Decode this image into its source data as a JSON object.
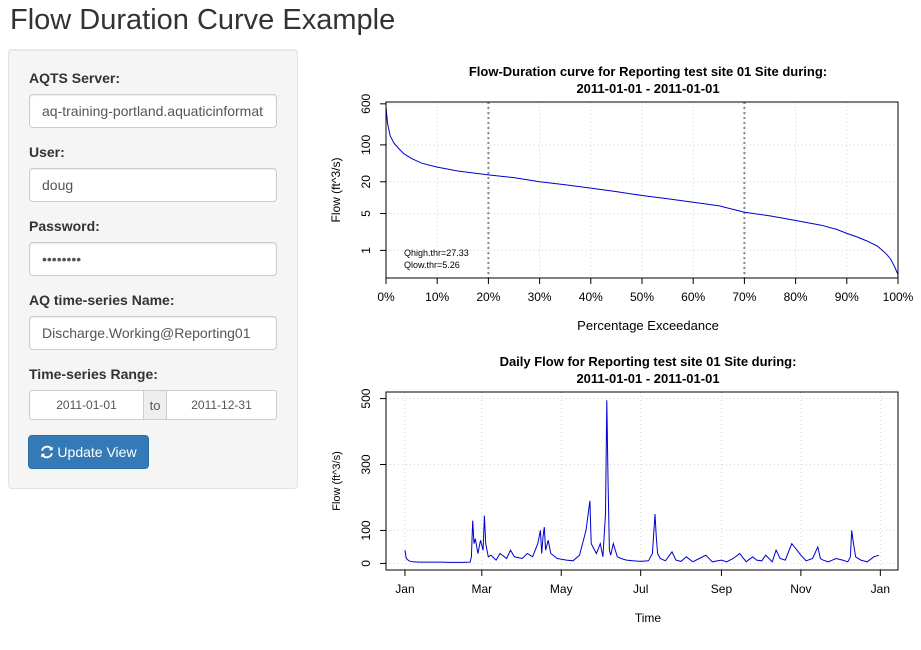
{
  "page": {
    "title": "Flow Duration Curve Example"
  },
  "form": {
    "server_label": "AQTS Server:",
    "server_value": "aq-training-portland.aquaticinformatics.net",
    "user_label": "User:",
    "user_value": "doug",
    "password_label": "Password:",
    "password_value": "doug1234",
    "series_label": "AQ time-series Name:",
    "series_value": "Discharge.Working@Reporting01",
    "range_label": "Time-series Range:",
    "range_start": "2011-01-01",
    "range_sep": "to",
    "range_end": "2011-12-31",
    "update_label": "Update View",
    "update_icon": "refresh-icon",
    "accent_color": "#337ab7"
  },
  "chart_data": [
    {
      "type": "line",
      "title": "Flow-Duration curve for Reporting test site 01 Site during:",
      "subtitle": "2011-01-01 - 2011-01-01",
      "xlabel": "Percentage Exceedance",
      "ylabel": "Flow (ft^3/s)",
      "xlim": [
        0,
        100
      ],
      "ylim": [
        0.3,
        650
      ],
      "y_scale": "log",
      "x_ticks": [
        0,
        10,
        20,
        30,
        40,
        50,
        60,
        70,
        80,
        90,
        100
      ],
      "x_tick_labels": [
        "0%",
        "10%",
        "20%",
        "30%",
        "40%",
        "50%",
        "60%",
        "70%",
        "80%",
        "90%",
        "100%"
      ],
      "y_ticks": [
        1,
        5,
        20,
        100,
        600
      ],
      "y_tick_labels": [
        "1",
        "5",
        "20",
        "100",
        "600"
      ],
      "grid": true,
      "threshold_lines_x": [
        20,
        70
      ],
      "annotations": [
        "Qhigh.thr=27.33",
        "Qlow.thr=5.26"
      ],
      "series": [
        {
          "color": "#0000cc",
          "x": [
            0,
            0.3,
            0.8,
            1.5,
            2.5,
            3.5,
            5,
            7,
            10,
            14,
            20,
            25,
            30,
            35,
            40,
            45,
            50,
            55,
            60,
            65,
            70,
            75,
            78,
            82,
            85,
            88,
            90,
            92,
            94,
            96,
            97.5,
            98.5,
            99.3,
            100
          ],
          "y": [
            520,
            260,
            150,
            110,
            85,
            68,
            55,
            45,
            38,
            32,
            27,
            24,
            20,
            17.5,
            15.2,
            13,
            11,
            9.5,
            8.2,
            7,
            5.3,
            4.5,
            4,
            3.4,
            3,
            2.5,
            2.1,
            1.8,
            1.5,
            1.2,
            0.9,
            0.7,
            0.5,
            0.35
          ]
        }
      ]
    },
    {
      "type": "line",
      "title": "Daily Flow for Reporting test site 01 Site during:",
      "subtitle": "2011-01-01 - 2011-01-01",
      "xlabel": "Time",
      "ylabel": "Flow (ft^3/s)",
      "xlim": [
        "2011-01-01",
        "2011-12-31"
      ],
      "ylim": [
        -20,
        520
      ],
      "y_ticks": [
        0,
        100,
        300,
        500
      ],
      "y_tick_labels": [
        "0",
        "100",
        "300",
        "500"
      ],
      "x_ticks": [
        "2011-01-01",
        "2011-03-01",
        "2011-05-01",
        "2011-07-01",
        "2011-09-01",
        "2011-11-01",
        "2012-01-01"
      ],
      "x_tick_labels": [
        "Jan",
        "Mar",
        "May",
        "Jul",
        "Sep",
        "Nov",
        "Jan"
      ],
      "grid": true,
      "series": [
        {
          "color": "#0000cc",
          "x": [
            "2011-01-01",
            "2011-01-02",
            "2011-01-04",
            "2011-01-07",
            "2011-01-12",
            "2011-01-20",
            "2011-01-28",
            "2011-02-05",
            "2011-02-13",
            "2011-02-20",
            "2011-02-21",
            "2011-02-22",
            "2011-02-23",
            "2011-02-24",
            "2011-02-26",
            "2011-02-28",
            "2011-03-02",
            "2011-03-03",
            "2011-03-04",
            "2011-03-06",
            "2011-03-08",
            "2011-03-12",
            "2011-03-15",
            "2011-03-20",
            "2011-03-23",
            "2011-03-26",
            "2011-04-01",
            "2011-04-05",
            "2011-04-09",
            "2011-04-13",
            "2011-04-15",
            "2011-04-16",
            "2011-04-17",
            "2011-04-18",
            "2011-04-19",
            "2011-04-21",
            "2011-04-23",
            "2011-04-28",
            "2011-05-05",
            "2011-05-10",
            "2011-05-15",
            "2011-05-20",
            "2011-05-23",
            "2011-05-24",
            "2011-05-26",
            "2011-05-28",
            "2011-05-31",
            "2011-06-02",
            "2011-06-04",
            "2011-06-05",
            "2011-06-06",
            "2011-06-07",
            "2011-06-08",
            "2011-06-10",
            "2011-06-13",
            "2011-06-16",
            "2011-06-20",
            "2011-06-25",
            "2011-07-01",
            "2011-07-07",
            "2011-07-10",
            "2011-07-12",
            "2011-07-13",
            "2011-07-14",
            "2011-07-16",
            "2011-07-20",
            "2011-07-25",
            "2011-07-28",
            "2011-08-01",
            "2011-08-05",
            "2011-08-10",
            "2011-08-15",
            "2011-08-20",
            "2011-08-25",
            "2011-09-01",
            "2011-09-05",
            "2011-09-10",
            "2011-09-15",
            "2011-09-20",
            "2011-09-25",
            "2011-09-28",
            "2011-10-02",
            "2011-10-05",
            "2011-10-10",
            "2011-10-13",
            "2011-10-16",
            "2011-10-20",
            "2011-10-25",
            "2011-11-01",
            "2011-11-05",
            "2011-11-10",
            "2011-11-14",
            "2011-11-16",
            "2011-11-18",
            "2011-11-22",
            "2011-11-28",
            "2011-12-03",
            "2011-12-07",
            "2011-12-09",
            "2011-12-10",
            "2011-12-11",
            "2011-12-13",
            "2011-12-17",
            "2011-12-22",
            "2011-12-27",
            "2011-12-31"
          ],
          "y": [
            40,
            15,
            8,
            5,
            4,
            4,
            4,
            3,
            3,
            4,
            20,
            130,
            60,
            75,
            30,
            70,
            40,
            145,
            60,
            20,
            25,
            10,
            30,
            15,
            40,
            20,
            15,
            30,
            20,
            60,
            100,
            30,
            80,
            110,
            40,
            70,
            30,
            15,
            10,
            8,
            25,
            100,
            190,
            60,
            45,
            30,
            60,
            20,
            150,
            495,
            240,
            40,
            25,
            60,
            20,
            15,
            10,
            8,
            6,
            8,
            30,
            150,
            80,
            30,
            15,
            8,
            35,
            10,
            6,
            20,
            5,
            15,
            25,
            5,
            10,
            5,
            15,
            30,
            5,
            20,
            10,
            8,
            25,
            5,
            40,
            15,
            10,
            60,
            25,
            8,
            15,
            50,
            15,
            10,
            5,
            15,
            10,
            5,
            20,
            100,
            70,
            20,
            10,
            5,
            20,
            25
          ]
        }
      ]
    }
  ]
}
